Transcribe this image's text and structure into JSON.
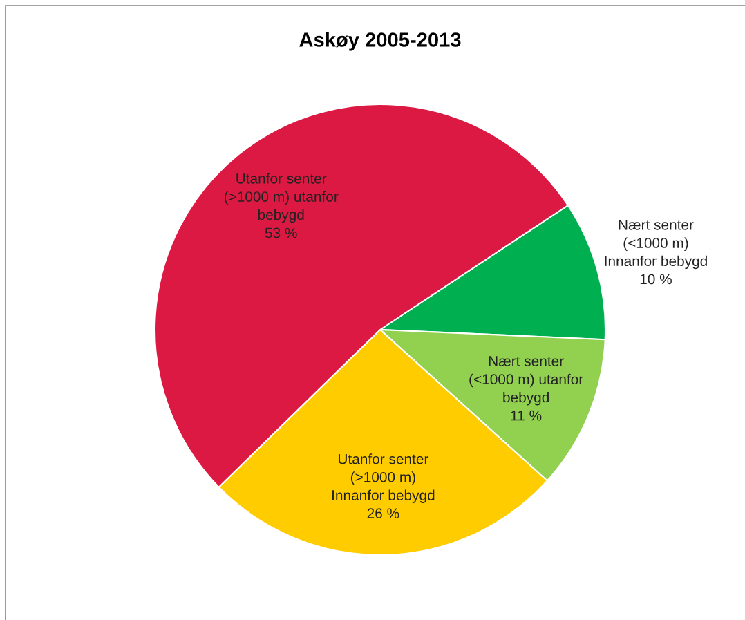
{
  "chart_data": {
    "type": "pie",
    "title": "Askøy 2005-2013",
    "categories": [
      "Nært senter\n(<1000 m)\nInnanfor bebygd",
      "Nært senter\n(<1000 m) utanfor\nbebygd",
      "Utanfor senter\n(>1000 m)\nInnanfor bebygd",
      "Utanfor senter\n(>1000 m) utanfor\nbebygd"
    ],
    "values": [
      10,
      11,
      26,
      53
    ],
    "value_labels": [
      "10 %",
      "11 %",
      "26 %",
      "53 %"
    ],
    "colors": [
      "#00b050",
      "#92d050",
      "#ffcc00",
      "#dc1942"
    ],
    "legend": false
  }
}
